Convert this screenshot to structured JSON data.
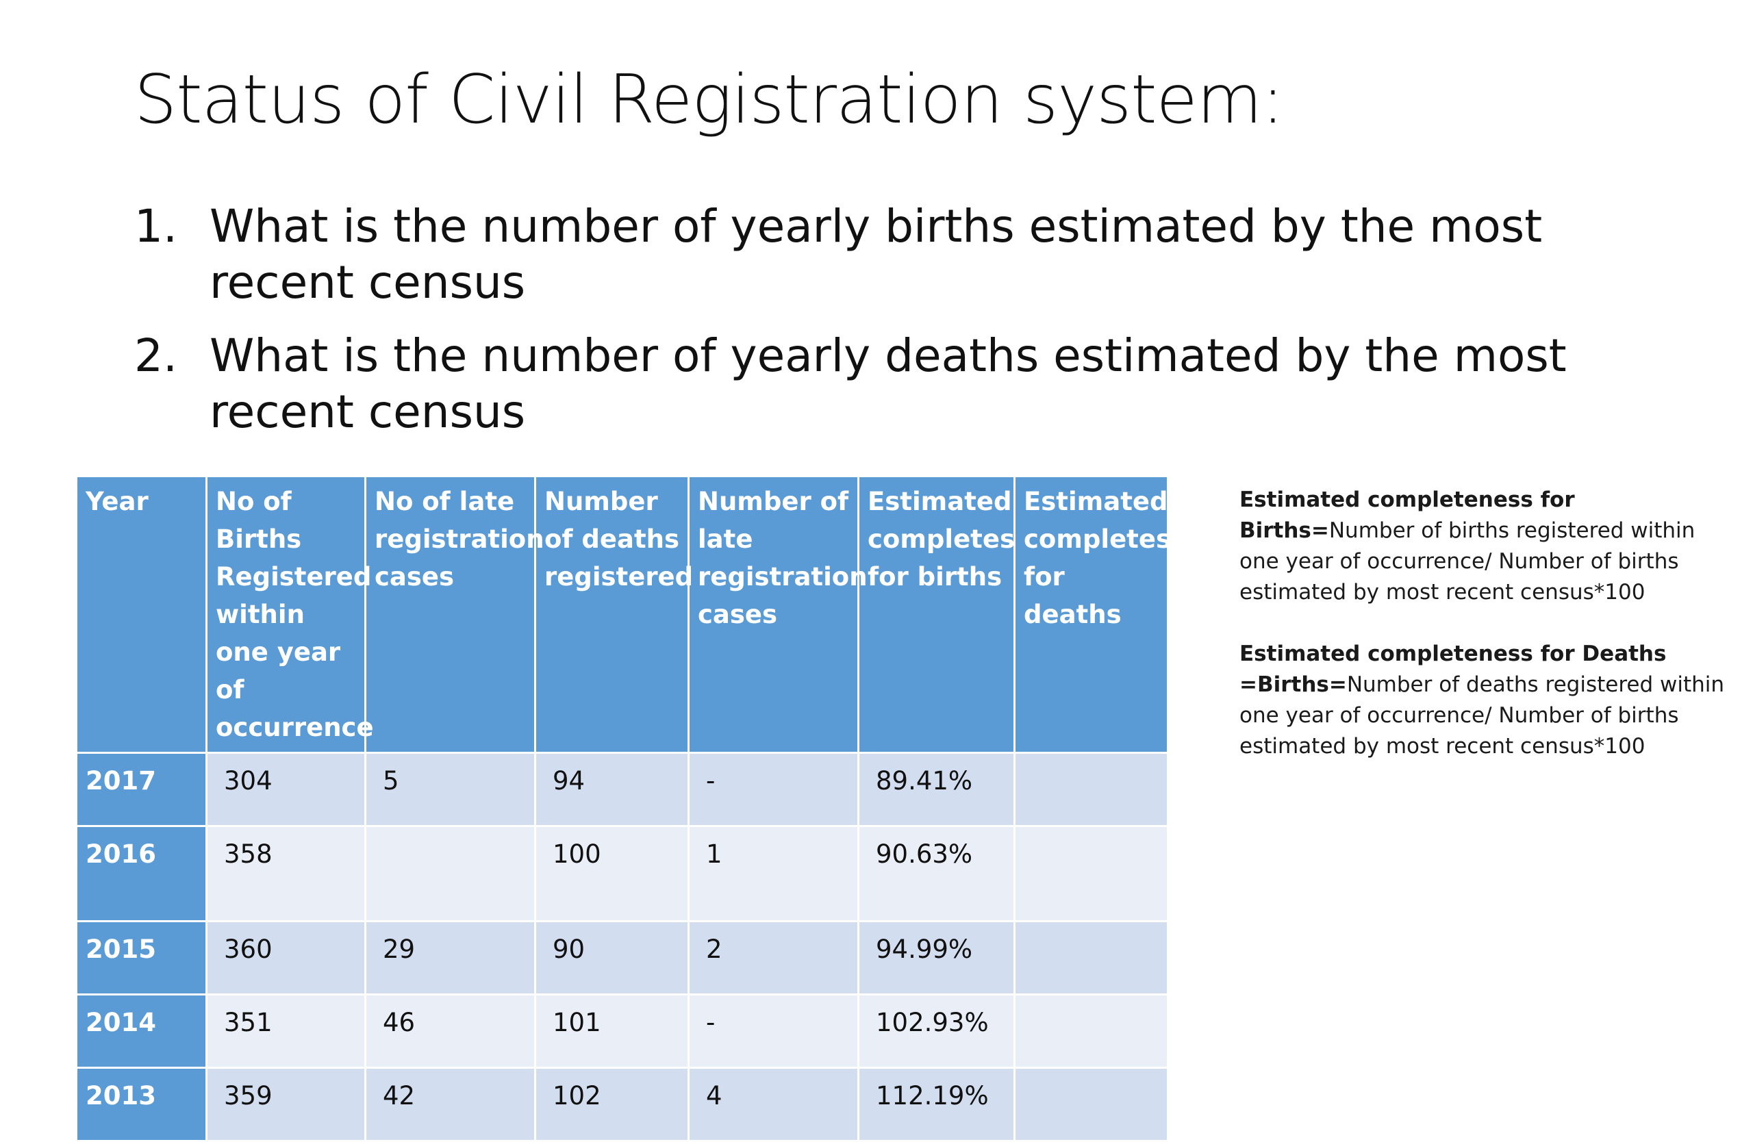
{
  "slide": {
    "title": "Status of Civil Registration system:"
  },
  "questions": [
    {
      "number": "1.",
      "text": "What is the number of yearly births estimated by the most recent census"
    },
    {
      "number": "2.",
      "text": "What is the number of yearly deaths estimated by the most recent census"
    }
  ],
  "table": {
    "headers": [
      "Year",
      "No of Births Registered within one year of occurrence",
      "No of late registration cases",
      "Number of deaths registered",
      "Number of late registration cases",
      "Estimated completes for births",
      "Estimated completes for deaths"
    ],
    "rows": [
      [
        "2017",
        "304",
        "5",
        "94",
        "-",
        "89.41%",
        ""
      ],
      [
        "2016",
        "358",
        "",
        "100",
        "1",
        "90.63%",
        ""
      ],
      [
        "2015",
        "360",
        "29",
        "90",
        "2",
        "94.99%",
        ""
      ],
      [
        "2014",
        "351",
        "46",
        "101",
        "-",
        "102.93%",
        ""
      ],
      [
        "2013",
        "359",
        "42",
        "102",
        "4",
        "112.19%",
        ""
      ]
    ]
  },
  "notes": {
    "births_label": "Estimated completeness for Births=",
    "births_text": "Number of births registered within one year of occurrence/ Number of births estimated by most recent census*100",
    "deaths_label": "Estimated completeness for Deaths",
    "deaths_label_2": "=Births=",
    "deaths_text": "Number of deaths registered within one year of occurrence/ Number of births estimated by most recent census*100"
  },
  "colors": {
    "header_bg": "#5b9bd5",
    "row_dark": "#d2deef",
    "row_light": "#eaeff7"
  }
}
